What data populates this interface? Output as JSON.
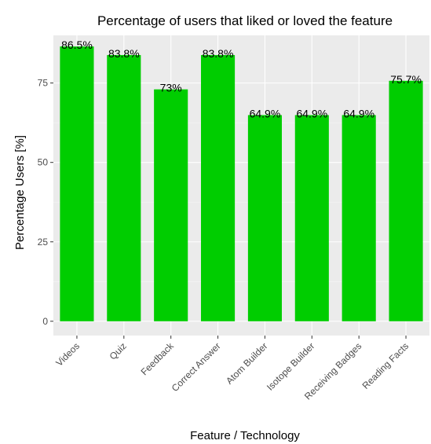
{
  "chart_data": {
    "type": "bar",
    "title": "Percentage of users that liked or loved the feature",
    "xlabel": "Feature / Technology",
    "ylabel": "Percentage Users [%]",
    "categories": [
      "Videos",
      "Quiz",
      "Feedback",
      "Correct Answer",
      "Atom Builder",
      "Isotope Builder",
      "Receiving Badges",
      "Reading Facts"
    ],
    "values": [
      86.5,
      83.8,
      73,
      83.8,
      64.9,
      64.9,
      64.9,
      75.7
    ],
    "value_labels": [
      "86.5%",
      "83.8%",
      "73%",
      "83.8%",
      "64.9%",
      "64.9%",
      "64.9%",
      "75.7%"
    ],
    "yticks": [
      0,
      25,
      50,
      75
    ],
    "ytick_labels": [
      "0",
      "25",
      "50",
      "75"
    ],
    "ylim": [
      -4.5,
      90
    ],
    "grid": true,
    "legend": "none",
    "colors": {
      "bar": "#00cd00",
      "panel": "#ebebeb",
      "grid_major": "#ffffff",
      "grid_minor": "#f5f5f5"
    }
  }
}
